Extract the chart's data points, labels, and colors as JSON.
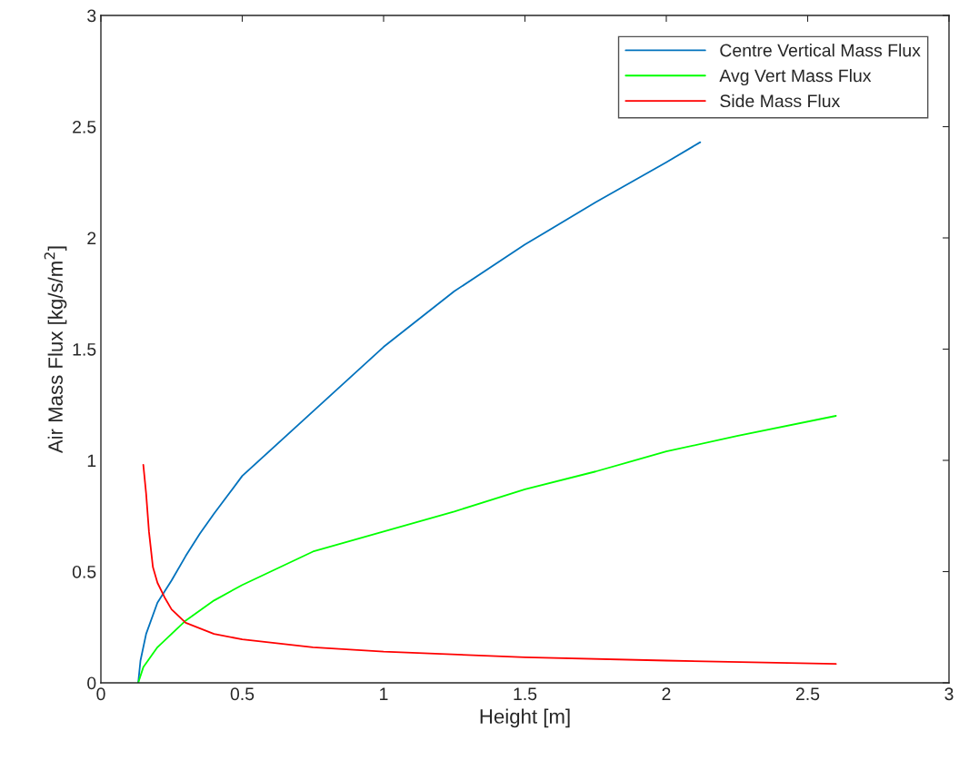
{
  "chart_data": {
    "type": "line",
    "xlabel": "Height [m]",
    "ylabel": "Air Mass Flux [kg/s/m$^{2}$]",
    "xlim": [
      0,
      3
    ],
    "ylim": [
      0,
      3
    ],
    "xticks": [
      0,
      0.5,
      1,
      1.5,
      2,
      2.5,
      3
    ],
    "yticks": [
      0,
      0.5,
      1,
      1.5,
      2,
      2.5,
      3
    ],
    "legend": "top right",
    "grid": false,
    "series": [
      {
        "name": "Centre Vertical Mass Flux",
        "color": "#0072bd",
        "x": [
          0.132,
          0.14,
          0.16,
          0.2,
          0.25,
          0.3,
          0.35,
          0.4,
          0.5,
          0.75,
          1.0,
          1.25,
          1.5,
          1.75,
          2.0,
          2.12
        ],
        "values": [
          0,
          0.1,
          0.22,
          0.36,
          0.46,
          0.57,
          0.67,
          0.76,
          0.93,
          1.22,
          1.51,
          1.76,
          1.97,
          2.16,
          2.34,
          2.43
        ]
      },
      {
        "name": "Avg Vert Mass Flux",
        "color": "#00ff00",
        "x": [
          0.132,
          0.15,
          0.2,
          0.3,
          0.4,
          0.5,
          0.75,
          1.0,
          1.25,
          1.5,
          1.75,
          2.0,
          2.25,
          2.6
        ],
        "values": [
          0,
          0.07,
          0.16,
          0.28,
          0.37,
          0.44,
          0.59,
          0.68,
          0.77,
          0.87,
          0.95,
          1.04,
          1.11,
          1.2
        ]
      },
      {
        "name": "Side Mass Flux",
        "color": "#ff0000",
        "x": [
          0.15,
          0.16,
          0.17,
          0.184,
          0.2,
          0.225,
          0.25,
          0.3,
          0.4,
          0.5,
          0.75,
          1.0,
          1.5,
          2.0,
          2.6
        ],
        "values": [
          0.98,
          0.85,
          0.68,
          0.52,
          0.45,
          0.385,
          0.33,
          0.27,
          0.22,
          0.195,
          0.16,
          0.14,
          0.115,
          0.1,
          0.085
        ]
      }
    ]
  }
}
